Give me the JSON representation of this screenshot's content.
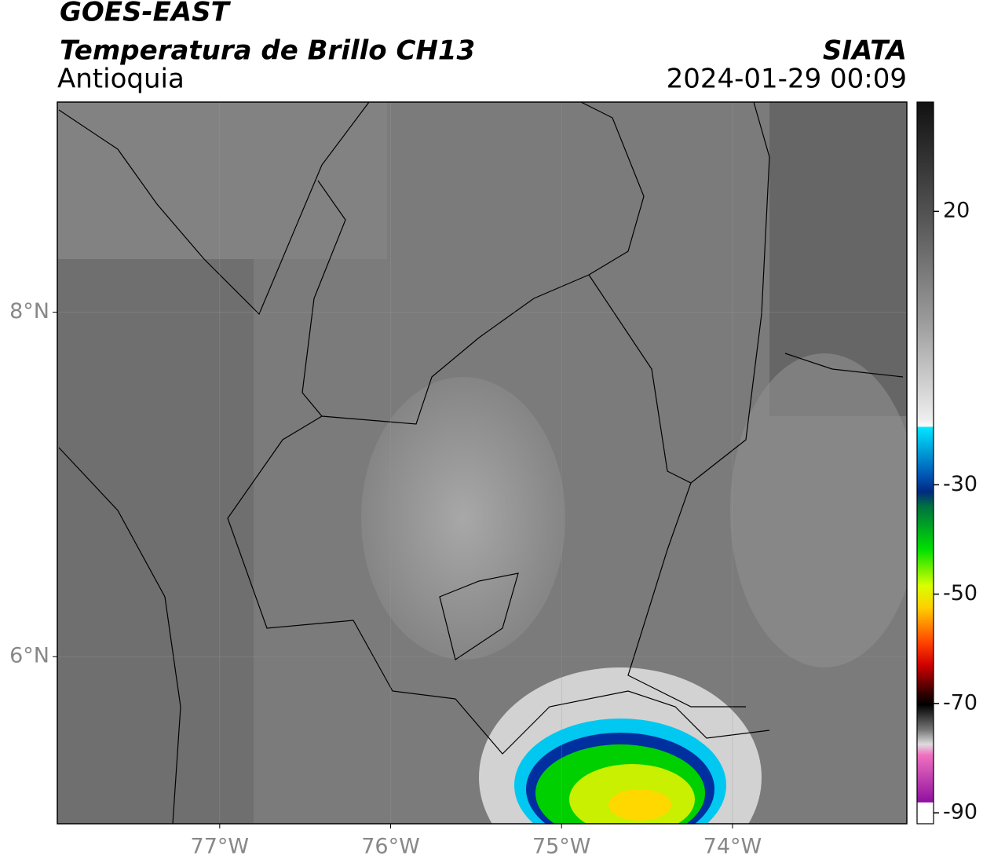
{
  "header": {
    "title": "GOES-EAST",
    "subtitle": "Temperatura de Brillo CH13",
    "region": "Antioquia",
    "source": "SIATA",
    "datetime": "2024-01-29 00:09"
  },
  "map": {
    "xlim": [
      -77.95,
      -72.98
    ],
    "ylim": [
      5.03,
      9.22
    ],
    "xticks": [
      {
        "value": -77,
        "label": "77°W"
      },
      {
        "value": -76,
        "label": "76°W"
      },
      {
        "value": -75,
        "label": "75°W"
      },
      {
        "value": -74,
        "label": "74°W"
      }
    ],
    "yticks": [
      {
        "value": 8,
        "label": "8°N"
      },
      {
        "value": 6,
        "label": "6°N"
      }
    ],
    "grid": true
  },
  "colorbar": {
    "ylim": [
      -92,
      40
    ],
    "yticks": [
      20,
      -30,
      -50,
      -70,
      -90
    ]
  }
}
